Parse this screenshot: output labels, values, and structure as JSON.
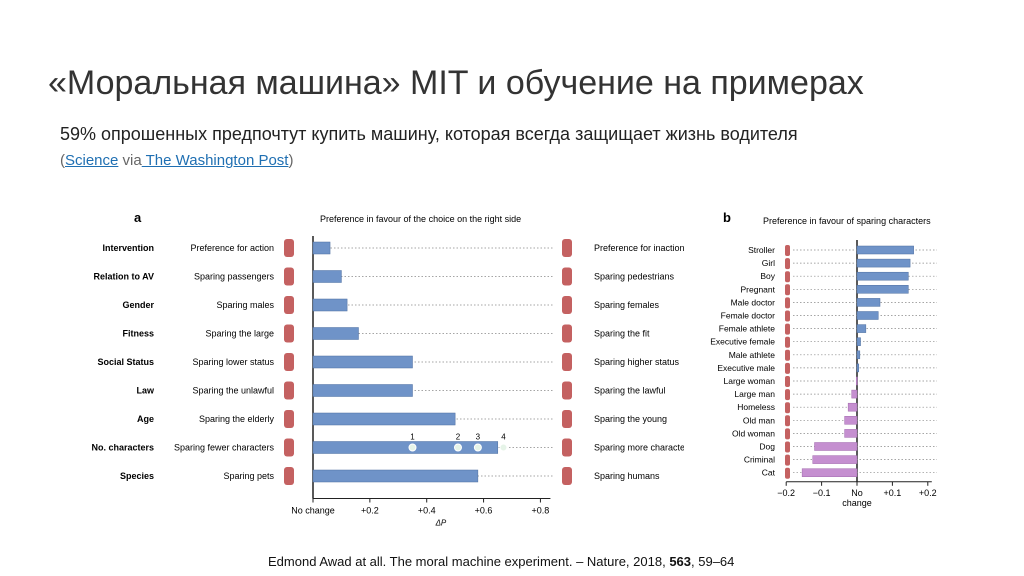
{
  "slide": {
    "title": "«Моральная машина» MIT и обучение на примерах",
    "subtitle": "59% опрошенных предпочтут купить машину, которая всегда защищает жизнь водителя",
    "source_open": "(",
    "source_link1": "Science",
    "source_via": " via",
    "source_link2": " The Washington Post",
    "source_close": ")",
    "citation_pre": "Edmond Awad at all. The moral machine experiment. – Nature, 2018, ",
    "citation_bold": "563",
    "citation_post": ", 59–64"
  },
  "chart_data": [
    {
      "type": "bar",
      "panel_label": "a",
      "title": "Preference in favour of the choice on the right side",
      "xlabel": "ΔP",
      "xlim": [
        0,
        0.9
      ],
      "x_ticks": [
        {
          "value": 0,
          "label": "No change"
        },
        {
          "value": 0.2,
          "label": "+0.2"
        },
        {
          "value": 0.4,
          "label": "+0.4"
        },
        {
          "value": 0.6,
          "label": "+0.6"
        },
        {
          "value": 0.8,
          "label": "+0.8"
        }
      ],
      "categories": [
        "Intervention",
        "Relation to AV",
        "Gender",
        "Fitness",
        "Social Status",
        "Law",
        "Age",
        "No. characters",
        "Species"
      ],
      "left_labels": [
        "Preference for action",
        "Sparing passengers",
        "Sparing males",
        "Sparing the large",
        "Sparing lower status",
        "Sparing the unlawful",
        "Sparing the elderly",
        "Sparing fewer characters",
        "Sparing pets"
      ],
      "right_labels": [
        "Preference for inaction",
        "Sparing pedestrians",
        "Sparing females",
        "Sparing the fit",
        "Sparing higher status",
        "Sparing the lawful",
        "Sparing the young",
        "Sparing more characters",
        "Sparing humans"
      ],
      "values": [
        0.06,
        0.1,
        0.12,
        0.16,
        0.35,
        0.35,
        0.5,
        0.65,
        0.58
      ],
      "no_characters_markers": [
        {
          "label": "1",
          "value": 0.35
        },
        {
          "label": "2",
          "value": 0.51
        },
        {
          "label": "3",
          "value": 0.58
        },
        {
          "label": "4",
          "value": 0.67
        }
      ]
    },
    {
      "type": "bar",
      "panel_label": "b",
      "title": "Preference in favour of sparing characters",
      "xlabel": "change",
      "xlim": [
        -0.23,
        0.23
      ],
      "x_ticks": [
        {
          "value": -0.2,
          "label": "−0.2"
        },
        {
          "value": -0.1,
          "label": "−0.1"
        },
        {
          "value": 0,
          "label": "No"
        },
        {
          "value": 0.1,
          "label": "+0.1"
        },
        {
          "value": 0.2,
          "label": "+0.2"
        }
      ],
      "categories": [
        "Stroller",
        "Girl",
        "Boy",
        "Pregnant",
        "Male doctor",
        "Female doctor",
        "Female athlete",
        "Executive female",
        "Male athlete",
        "Executive male",
        "Large woman",
        "Large man",
        "Homeless",
        "Old man",
        "Old woman",
        "Dog",
        "Criminal",
        "Cat"
      ],
      "values": [
        0.16,
        0.15,
        0.145,
        0.145,
        0.065,
        0.06,
        0.025,
        0.01,
        0.008,
        0.005,
        -0.002,
        -0.015,
        -0.025,
        -0.035,
        -0.035,
        -0.12,
        -0.125,
        -0.155
      ]
    }
  ],
  "colors": {
    "bar_a": "#6f93c8",
    "bar_b_pos": "#6f93c8",
    "bar_b_neg": "#c58fd0",
    "figure_red": "#b53a3a",
    "axis": "#222222"
  }
}
